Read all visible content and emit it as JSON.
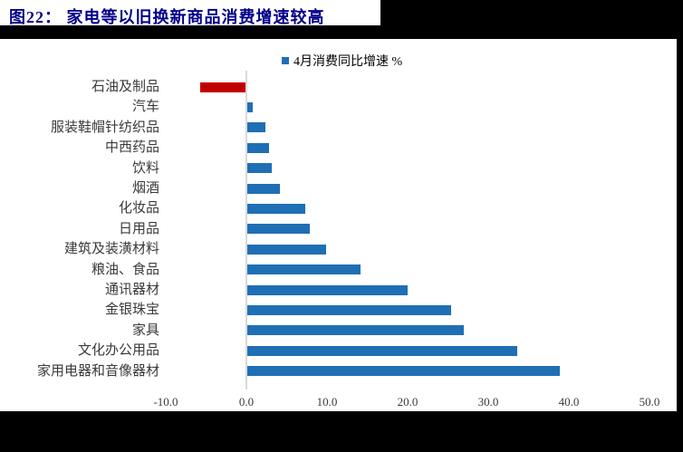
{
  "header": {
    "title": "图22：  家电等以旧换新商品消费增速较高",
    "title_color": "#00008B"
  },
  "legend": {
    "label": "4月消费同比增速 %",
    "marker_color": "#1F6FB5"
  },
  "chart_data": {
    "type": "bar",
    "orientation": "horizontal",
    "title": "图22：  家电等以旧换新商品消费增速较高",
    "legend_entries": [
      "4月消费同比增速 %"
    ],
    "unit": "%",
    "categories_top_to_bottom": [
      "石油及制品",
      "汽车",
      "服装鞋帽针纺织品",
      "中西药品",
      "饮料",
      "烟酒",
      "化妆品",
      "日用品",
      "建筑及装潢材料",
      "粮油、食品",
      "通讯器材",
      "金银珠宝",
      "家具",
      "文化办公用品",
      "家用电器和音像器材"
    ],
    "values": [
      -5.6,
      0.7,
      2.2,
      2.7,
      3.0,
      4.0,
      7.2,
      7.7,
      9.8,
      14.0,
      19.9,
      25.3,
      26.9,
      33.5,
      38.8
    ],
    "xlim": [
      -10,
      50
    ],
    "x_tick_labels": [
      "-10.0",
      "0.0",
      "10.0",
      "20.0",
      "30.0",
      "40.0",
      "50.0"
    ],
    "bar_color": "#1F6FB5",
    "negative_bar_color": "#C00000",
    "axis_line_color": "#D9D9D9",
    "grid": "off",
    "legend_position": "top"
  }
}
